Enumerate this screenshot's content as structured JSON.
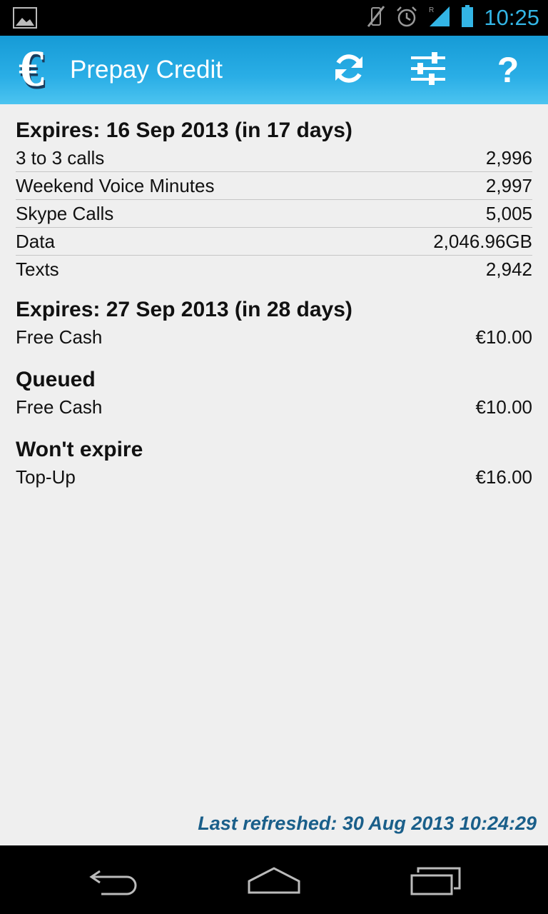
{
  "status_bar": {
    "time": "10:25",
    "icons": [
      "picture-icon",
      "vibrate-mute-icon",
      "alarm-icon",
      "signal-roaming-icon",
      "battery-icon"
    ]
  },
  "action_bar": {
    "title": "Prepay Credit",
    "logo_icon": "euro-phone-icon",
    "actions": [
      "refresh-icon",
      "settings-sliders-icon",
      "help-icon"
    ],
    "help_glyph": "?"
  },
  "sections": [
    {
      "title": "Expires: 16 Sep 2013 (in 17 days)",
      "rows": [
        {
          "label": "3 to 3 calls",
          "value": "2,996"
        },
        {
          "label": "Weekend Voice Minutes",
          "value": "2,997"
        },
        {
          "label": "Skype Calls",
          "value": "5,005"
        },
        {
          "label": "Data",
          "value": "2,046.96GB"
        },
        {
          "label": "Texts",
          "value": "2,942"
        }
      ]
    },
    {
      "title": "Expires: 27 Sep 2013 (in 28 days)",
      "rows": [
        {
          "label": "Free Cash",
          "value": "€10.00"
        }
      ]
    },
    {
      "title": "Queued",
      "rows": [
        {
          "label": "Free Cash",
          "value": "€10.00"
        }
      ]
    },
    {
      "title": "Won't expire",
      "rows": [
        {
          "label": "Top-Up",
          "value": "€16.00"
        }
      ]
    }
  ],
  "footer": {
    "last_refreshed": "Last refreshed: 30 Aug 2013 10:24:29"
  },
  "nav_bar": {
    "buttons": [
      "back-icon",
      "home-icon",
      "recent-apps-icon"
    ]
  },
  "colors": {
    "accent": "#33b5e5",
    "action_bar": "#1fa5de",
    "footer_text": "#1a5f8a"
  }
}
